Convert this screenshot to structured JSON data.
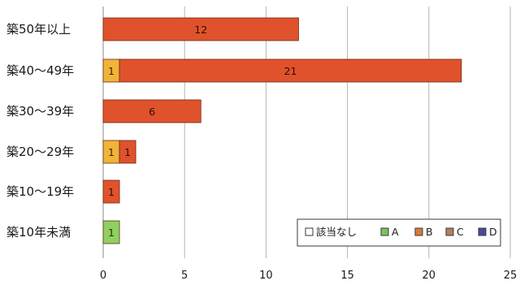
{
  "chart_data": {
    "type": "bar",
    "orientation": "horizontal",
    "stacked": true,
    "categories": [
      "築50年以上",
      "築40～49年",
      "築30～39年",
      "築20～29年",
      "築10～19年",
      "築10年未満"
    ],
    "series": [
      {
        "name": "該当なし",
        "color": "#ffffff",
        "values": [
          0,
          0,
          0,
          0,
          0,
          0
        ]
      },
      {
        "name": "A",
        "color": "#8ed063",
        "values": [
          0,
          0,
          0,
          0,
          0,
          1
        ]
      },
      {
        "name": "B",
        "color": "#f0b43a",
        "values": [
          0,
          1,
          0,
          1,
          0,
          0
        ]
      },
      {
        "name": "C",
        "color": "#e0522c",
        "values": [
          12,
          21,
          6,
          1,
          1,
          0
        ]
      },
      {
        "name": "D",
        "color": "#5a56a0",
        "values": [
          0,
          0,
          0,
          0,
          0,
          0
        ]
      }
    ],
    "xlim": [
      0,
      25
    ],
    "xticks": [
      "0",
      "5",
      "10",
      "15",
      "20",
      "25"
    ],
    "grid": true,
    "legend_position": "bottom-right",
    "legend_swatch_colors": [
      "#ffffff",
      "#7cc35a",
      "#d97a3c",
      "#b08060",
      "#4a4a9a"
    ],
    "xlabel": "",
    "ylabel": "",
    "title": ""
  }
}
